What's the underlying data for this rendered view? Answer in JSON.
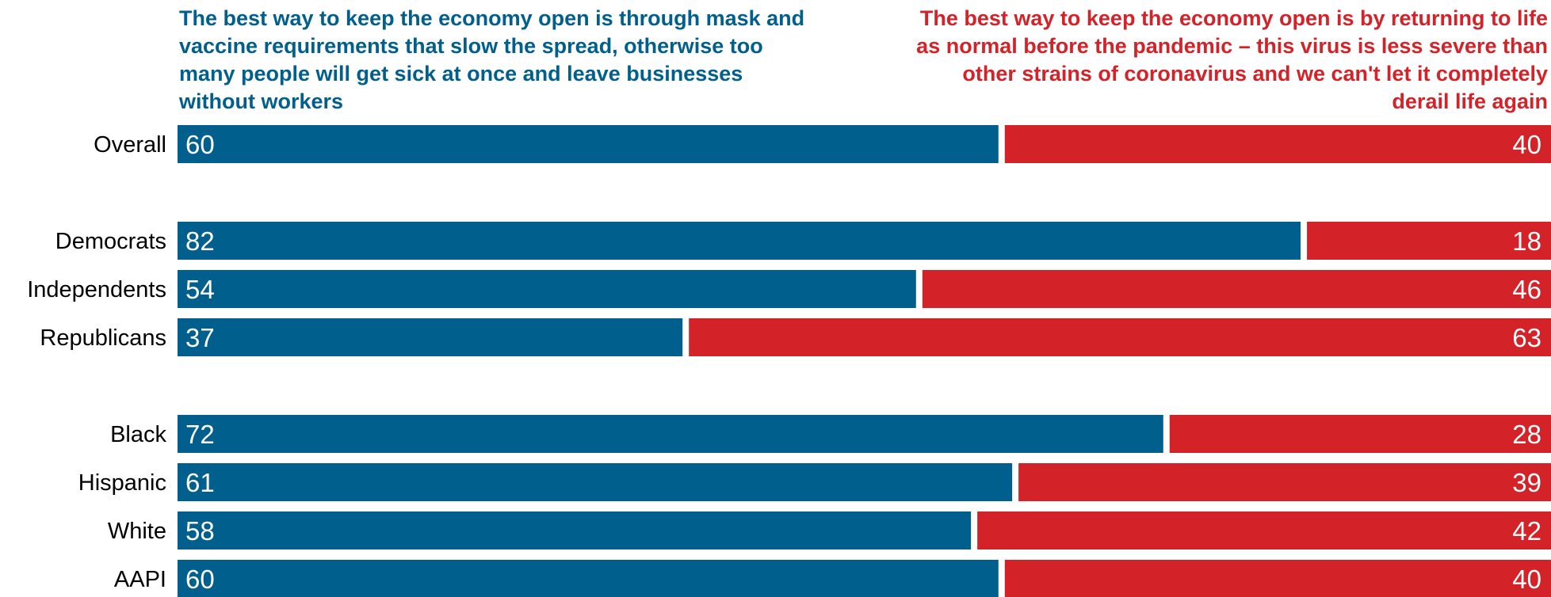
{
  "chart_data": {
    "type": "bar",
    "stacked": true,
    "orientation": "horizontal",
    "series": [
      {
        "name": "The best way to keep the economy open is through mask and vaccine requirements that slow the spread, otherwise too many people will get sick at once and leave businesses without workers",
        "color": "#005f8c",
        "values": [
          60,
          82,
          54,
          37,
          72,
          61,
          58,
          60
        ]
      },
      {
        "name": "The best way to keep the economy open is by returning to life as normal before the pandemic – this virus is less severe than other strains of coronavirus and we can't let it completely derail life again",
        "color": "#d42229",
        "values": [
          40,
          18,
          46,
          63,
          28,
          39,
          42,
          40
        ]
      }
    ],
    "categories": [
      "Overall",
      "Democrats",
      "Independents",
      "Republicans",
      "Black",
      "Hispanic",
      "White",
      "AAPI"
    ],
    "groups": [
      [
        "Overall"
      ],
      [
        "Democrats",
        "Independents",
        "Republicans"
      ],
      [
        "Black",
        "Hispanic",
        "White",
        "AAPI"
      ]
    ],
    "xlim": [
      0,
      100
    ],
    "legend_position": "top",
    "grid": false
  },
  "colors": {
    "left": "#005f8c",
    "right": "#d42229",
    "label_text": "#000000",
    "value_text": "#ffffff"
  }
}
